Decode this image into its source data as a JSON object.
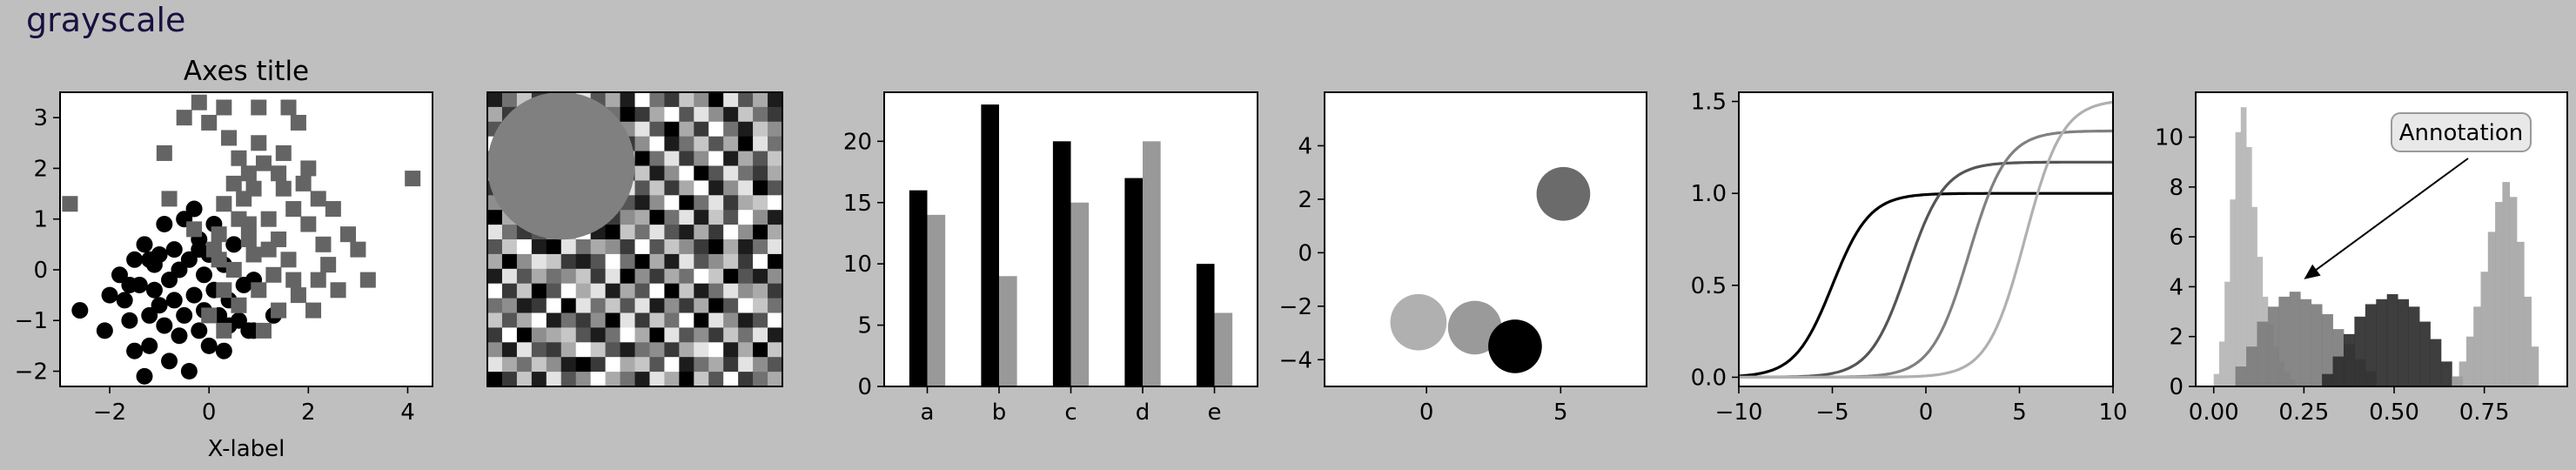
{
  "figure": {
    "suptitle": "grayscale",
    "background": "#bfbfbf"
  },
  "chart_data": [
    {
      "id": "scatter",
      "type": "scatter",
      "title": "Axes title",
      "xlabel": "X-label",
      "ylabel": "",
      "xlim": [
        -3.0,
        4.5
      ],
      "ylim": [
        -2.3,
        3.5
      ],
      "xticks": [
        -2,
        0,
        2,
        4
      ],
      "yticks": [
        -2,
        -1,
        0,
        1,
        2,
        3
      ],
      "series": [
        {
          "marker": "circle",
          "color": "#000000",
          "points": [
            [
              -2.6,
              -0.8
            ],
            [
              -2.1,
              -1.2
            ],
            [
              -2.0,
              -0.5
            ],
            [
              -1.8,
              -0.1
            ],
            [
              -1.7,
              -0.6
            ],
            [
              -1.6,
              -1.0
            ],
            [
              -1.5,
              0.2
            ],
            [
              -1.5,
              -1.6
            ],
            [
              -1.4,
              -0.3
            ],
            [
              -1.3,
              0.5
            ],
            [
              -1.3,
              -2.1
            ],
            [
              -1.2,
              -0.9
            ],
            [
              -1.2,
              -1.5
            ],
            [
              -1.1,
              0.1
            ],
            [
              -1.1,
              -0.4
            ],
            [
              -1.0,
              -0.7
            ],
            [
              -1.0,
              0.3
            ],
            [
              -0.9,
              -1.1
            ],
            [
              -0.9,
              0.9
            ],
            [
              -0.8,
              -0.2
            ],
            [
              -0.8,
              -1.8
            ],
            [
              -0.7,
              0.4
            ],
            [
              -0.7,
              -0.6
            ],
            [
              -0.6,
              0.0
            ],
            [
              -0.6,
              -1.3
            ],
            [
              -0.5,
              1.0
            ],
            [
              -0.5,
              -0.9
            ],
            [
              -0.4,
              0.2
            ],
            [
              -0.4,
              -2.0
            ],
            [
              -0.3,
              -0.5
            ],
            [
              -0.3,
              1.2
            ],
            [
              -0.2,
              0.6
            ],
            [
              -0.2,
              -1.2
            ],
            [
              -0.1,
              -0.1
            ],
            [
              -0.1,
              -0.8
            ],
            [
              0.0,
              0.3
            ],
            [
              0.0,
              -1.5
            ],
            [
              0.1,
              -0.4
            ],
            [
              0.1,
              0.9
            ],
            [
              0.2,
              -0.9
            ],
            [
              0.3,
              0.1
            ],
            [
              0.3,
              -1.6
            ],
            [
              0.4,
              -0.6
            ],
            [
              0.5,
              0.5
            ],
            [
              0.6,
              -1.0
            ],
            [
              0.7,
              -0.3
            ],
            [
              0.8,
              -1.2
            ],
            [
              0.9,
              -0.2
            ],
            [
              0.4,
              -1.1
            ],
            [
              -1.2,
              0.2
            ],
            [
              1.3,
              -0.9
            ],
            [
              0.9,
              -1.2
            ],
            [
              -0.2,
              0.4
            ],
            [
              -1.6,
              -0.3
            ]
          ]
        },
        {
          "marker": "square",
          "color": "#646464",
          "points": [
            [
              -2.8,
              1.3
            ],
            [
              -0.8,
              1.4
            ],
            [
              -0.9,
              2.3
            ],
            [
              -0.5,
              3.0
            ],
            [
              -0.2,
              3.3
            ],
            [
              0.0,
              2.9
            ],
            [
              0.3,
              3.2
            ],
            [
              1.0,
              3.2
            ],
            [
              1.6,
              3.2
            ],
            [
              1.8,
              2.9
            ],
            [
              1.0,
              2.5
            ],
            [
              1.5,
              2.3
            ],
            [
              0.6,
              2.2
            ],
            [
              0.8,
              1.9
            ],
            [
              1.4,
              1.9
            ],
            [
              2.0,
              2.0
            ],
            [
              4.1,
              1.8
            ],
            [
              0.5,
              1.7
            ],
            [
              0.9,
              1.6
            ],
            [
              1.5,
              1.6
            ],
            [
              2.2,
              1.4
            ],
            [
              0.3,
              1.3
            ],
            [
              1.7,
              1.2
            ],
            [
              2.5,
              1.2
            ],
            [
              0.6,
              1.0
            ],
            [
              1.2,
              1.0
            ],
            [
              2.0,
              0.9
            ],
            [
              2.8,
              0.7
            ],
            [
              0.2,
              0.7
            ],
            [
              0.8,
              0.6
            ],
            [
              1.4,
              0.6
            ],
            [
              2.3,
              0.5
            ],
            [
              3.0,
              0.4
            ],
            [
              0.1,
              0.4
            ],
            [
              0.9,
              0.3
            ],
            [
              1.6,
              0.2
            ],
            [
              2.4,
              0.1
            ],
            [
              3.2,
              -0.2
            ],
            [
              0.5,
              0.0
            ],
            [
              1.3,
              -0.1
            ],
            [
              0.3,
              -0.4
            ],
            [
              1.0,
              -0.4
            ],
            [
              1.8,
              -0.5
            ],
            [
              2.6,
              -0.4
            ],
            [
              0.6,
              -0.7
            ],
            [
              1.4,
              -0.8
            ],
            [
              0.0,
              -0.9
            ],
            [
              0.3,
              -1.2
            ],
            [
              1.1,
              -1.2
            ],
            [
              2.1,
              -0.8
            ],
            [
              -0.3,
              0.8
            ],
            [
              0.7,
              1.4
            ],
            [
              1.9,
              1.7
            ],
            [
              1.2,
              0.4
            ],
            [
              2.2,
              -0.2
            ],
            [
              0.4,
              2.6
            ],
            [
              1.1,
              2.1
            ],
            [
              0.2,
              0.2
            ],
            [
              1.7,
              -0.2
            ],
            [
              0.8,
              0.9
            ]
          ]
        }
      ]
    },
    {
      "id": "image",
      "type": "heatmap",
      "rows": 20,
      "cols": 20,
      "grid": [
        [
          1,
          4,
          7,
          2,
          0,
          5,
          8,
          3,
          6,
          1,
          9,
          4,
          2,
          7,
          5,
          0,
          8,
          3,
          6,
          1
        ],
        [
          6,
          2,
          9,
          5,
          3,
          8,
          1,
          7,
          4,
          0,
          2,
          6,
          9,
          3,
          8,
          5,
          1,
          7,
          4,
          2
        ],
        [
          3,
          8,
          0,
          6,
          9,
          2,
          7,
          4,
          1,
          5,
          8,
          3,
          0,
          6,
          2,
          9,
          4,
          1,
          7,
          5
        ],
        [
          9,
          5,
          3,
          1,
          7,
          4,
          0,
          8,
          6,
          2,
          5,
          9,
          1,
          4,
          7,
          3,
          6,
          0,
          8,
          4
        ],
        [
          4,
          0,
          6,
          8,
          2,
          9,
          5,
          1,
          3,
          7,
          0,
          4,
          8,
          2,
          5,
          9,
          1,
          6,
          3,
          7
        ],
        [
          7,
          3,
          1,
          4,
          6,
          0,
          9,
          5,
          8,
          2,
          7,
          1,
          5,
          9,
          0,
          3,
          8,
          4,
          2,
          6
        ],
        [
          2,
          9,
          5,
          7,
          1,
          3,
          6,
          0,
          4,
          8,
          3,
          7,
          2,
          6,
          9,
          1,
          5,
          8,
          0,
          3
        ],
        [
          5,
          1,
          8,
          0,
          4,
          7,
          2,
          9,
          6,
          3,
          1,
          5,
          9,
          0,
          4,
          8,
          2,
          6,
          7,
          9
        ],
        [
          0,
          6,
          4,
          9,
          8,
          1,
          3,
          7,
          2,
          5,
          6,
          0,
          4,
          8,
          1,
          7,
          3,
          9,
          5,
          1
        ],
        [
          8,
          4,
          2,
          3,
          5,
          6,
          9,
          1,
          0,
          7,
          4,
          8,
          3,
          1,
          6,
          2,
          9,
          5,
          0,
          6
        ],
        [
          3,
          7,
          9,
          1,
          0,
          8,
          4,
          6,
          5,
          2,
          9,
          3,
          7,
          5,
          2,
          0,
          6,
          1,
          4,
          8
        ],
        [
          6,
          0,
          5,
          8,
          7,
          2,
          1,
          3,
          9,
          4,
          0,
          6,
          1,
          8,
          3,
          5,
          7,
          2,
          9,
          0
        ],
        [
          1,
          8,
          3,
          6,
          4,
          5,
          7,
          2,
          8,
          0,
          5,
          2,
          6,
          4,
          9,
          7,
          0,
          3,
          1,
          5
        ],
        [
          9,
          2,
          7,
          0,
          3,
          9,
          6,
          8,
          1,
          6,
          3,
          9,
          0,
          7,
          1,
          4,
          8,
          5,
          6,
          2
        ],
        [
          4,
          5,
          1,
          2,
          9,
          0,
          8,
          4,
          7,
          3,
          8,
          1,
          5,
          2,
          6,
          0,
          3,
          9,
          7,
          4
        ],
        [
          7,
          3,
          6,
          9,
          1,
          4,
          2,
          5,
          0,
          8,
          2,
          7,
          4,
          9,
          0,
          8,
          5,
          1,
          3,
          9
        ],
        [
          2,
          9,
          0,
          5,
          6,
          7,
          3,
          1,
          4,
          9,
          6,
          0,
          8,
          3,
          5,
          2,
          7,
          4,
          8,
          1
        ],
        [
          5,
          1,
          8,
          3,
          2,
          6,
          9,
          7,
          3,
          1,
          4,
          5,
          2,
          6,
          8,
          9,
          1,
          6,
          0,
          7
        ],
        [
          8,
          6,
          4,
          7,
          5,
          1,
          0,
          2,
          9,
          6,
          7,
          3,
          9,
          1,
          4,
          6,
          2,
          8,
          5,
          3
        ],
        [
          0,
          2,
          7,
          1,
          8,
          3,
          5,
          9,
          6,
          4,
          1,
          8,
          6,
          0,
          7,
          3,
          9,
          2,
          4,
          6
        ]
      ],
      "overlay_circle": {
        "color": "#808080",
        "cx": 5,
        "cy": 5,
        "r": 5
      }
    },
    {
      "id": "bars",
      "type": "bar",
      "categories": [
        "a",
        "b",
        "c",
        "d",
        "e"
      ],
      "ylim": [
        0,
        24
      ],
      "yticks": [
        0,
        5,
        10,
        15,
        20
      ],
      "series": [
        {
          "color": "#000000",
          "values": [
            16,
            23,
            20,
            17,
            10
          ]
        },
        {
          "color": "#999999",
          "values": [
            14,
            9,
            15,
            20,
            6
          ]
        }
      ]
    },
    {
      "id": "circles",
      "type": "scatter",
      "xlim": [
        -3.8,
        8.2
      ],
      "ylim": [
        -5,
        6
      ],
      "xticks": [
        0,
        5
      ],
      "yticks": [
        -4,
        -2,
        0,
        2,
        4
      ],
      "circles": [
        {
          "x": 5.1,
          "y": 2.2,
          "r": 1.0,
          "color": "#6b6b6b"
        },
        {
          "x": -0.3,
          "y": -2.6,
          "r": 1.05,
          "color": "#b0b0b0"
        },
        {
          "x": 1.8,
          "y": -2.8,
          "r": 1.0,
          "color": "#9a9a9a"
        },
        {
          "x": 3.3,
          "y": -3.5,
          "r": 1.0,
          "color": "#000000"
        }
      ]
    },
    {
      "id": "sigmoids",
      "type": "line",
      "xlim": [
        -10,
        10
      ],
      "ylim": [
        -0.05,
        1.55
      ],
      "xticks": [
        -10,
        -5,
        0,
        5,
        10
      ],
      "yticks": [
        0.0,
        0.5,
        1.0,
        1.5
      ],
      "series": [
        {
          "color": "#000000",
          "shift": -5,
          "amplitude": 1.0
        },
        {
          "color": "#555555",
          "shift": -1,
          "amplitude": 1.17
        },
        {
          "color": "#808080",
          "shift": 2.3,
          "amplitude": 1.34
        },
        {
          "color": "#b0b0b0",
          "shift": 5.3,
          "amplitude": 1.51
        }
      ]
    },
    {
      "id": "histograms",
      "type": "bar",
      "annotation": "Annotation",
      "xlim": [
        -0.05,
        0.98
      ],
      "ylim": [
        0,
        11.8
      ],
      "xticks": [
        0.0,
        0.25,
        0.5,
        0.75
      ],
      "xticklabels": [
        "0.00",
        "0.25",
        "0.50",
        "0.75"
      ],
      "yticks": [
        0,
        2,
        4,
        6,
        8,
        10
      ],
      "arrow_target": {
        "x": 0.25,
        "y": 4.3
      },
      "series": [
        {
          "color": "#b5b5b5",
          "bins": [
            0.0,
            0.015,
            0.03,
            0.045,
            0.06,
            0.075,
            0.09,
            0.105,
            0.12,
            0.135,
            0.15,
            0.165,
            0.18,
            0.195,
            0.21,
            0.225
          ],
          "heights": [
            0.5,
            1.8,
            4.2,
            7.5,
            10.2,
            11.2,
            9.6,
            7.2,
            5.2,
            3.6,
            2.5,
            1.6,
            1.0,
            0.6,
            0.3
          ]
        },
        {
          "color": "#7d7d7d",
          "bins": [
            0.06,
            0.09,
            0.12,
            0.15,
            0.18,
            0.21,
            0.24,
            0.27,
            0.3,
            0.33,
            0.36,
            0.39,
            0.42,
            0.45
          ],
          "heights": [
            0.8,
            1.6,
            2.6,
            3.2,
            3.6,
            3.8,
            3.5,
            3.3,
            2.9,
            2.3,
            1.7,
            1.1,
            0.6
          ]
        },
        {
          "color": "#2e2e2e",
          "bins": [
            0.3,
            0.33,
            0.36,
            0.39,
            0.42,
            0.45,
            0.48,
            0.51,
            0.54,
            0.57,
            0.6,
            0.63,
            0.66,
            0.69
          ],
          "heights": [
            0.5,
            1.2,
            2.1,
            2.8,
            3.3,
            3.5,
            3.7,
            3.5,
            3.2,
            2.6,
            1.9,
            1.0,
            0.4
          ]
        },
        {
          "color": "#a6a6a6",
          "bins": [
            0.66,
            0.68,
            0.7,
            0.72,
            0.74,
            0.76,
            0.78,
            0.8,
            0.82,
            0.84,
            0.86,
            0.88,
            0.9
          ],
          "heights": [
            0.4,
            1.0,
            2.0,
            3.2,
            4.6,
            6.2,
            7.4,
            8.2,
            7.6,
            5.8,
            3.6,
            1.6
          ]
        }
      ]
    }
  ]
}
